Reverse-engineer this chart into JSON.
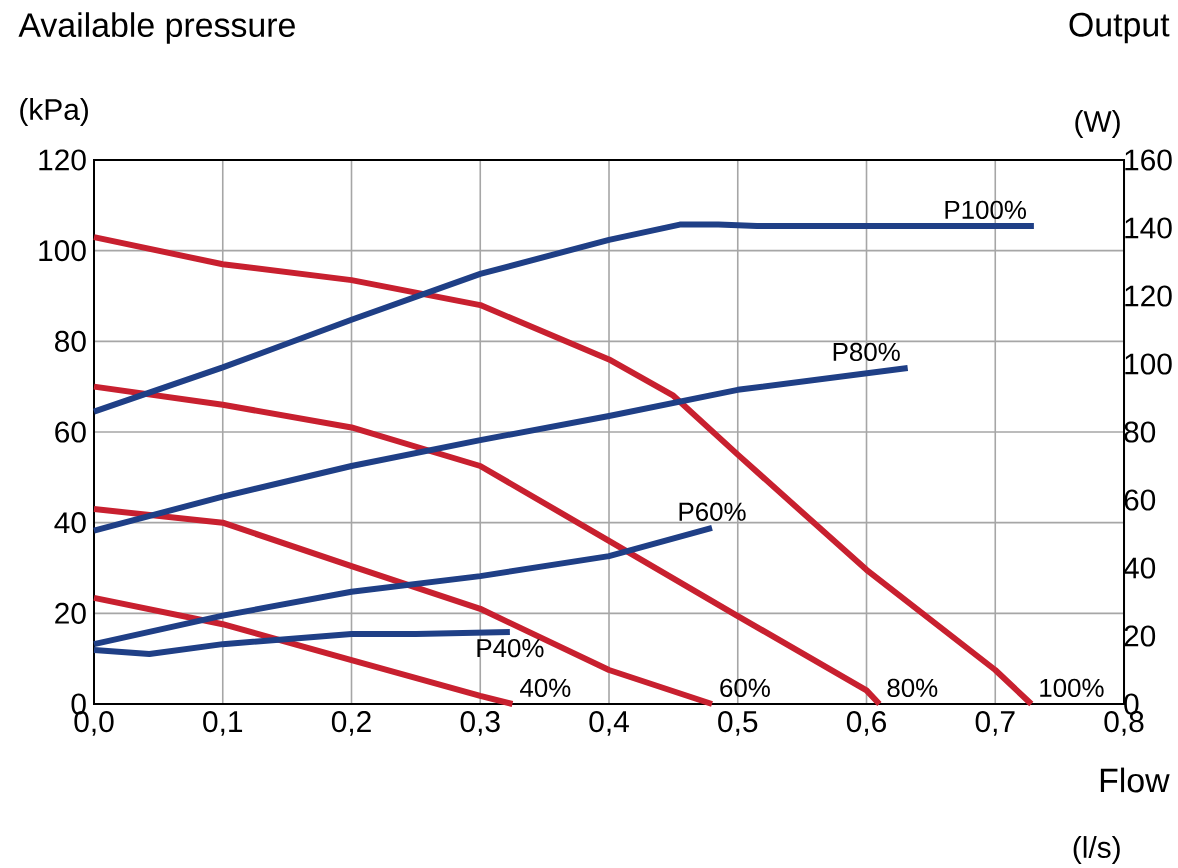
{
  "chart_data": {
    "type": "line",
    "xlabel": "(l/s)",
    "ylabel": "(kPa)",
    "y2label": "(W)",
    "annotations": [
      "Available pressure",
      "Output",
      "Flow"
    ],
    "xlim": [
      0,
      0.8
    ],
    "xticks": [
      {
        "value": 0,
        "label": "0,0"
      },
      {
        "value": 0.1,
        "label": "0,1"
      },
      {
        "value": 0.2,
        "label": "0,2"
      },
      {
        "value": 0.3,
        "label": "0,3"
      },
      {
        "value": 0.4,
        "label": "0,4"
      },
      {
        "value": 0.5,
        "label": "0,5"
      },
      {
        "value": 0.6,
        "label": "0,6"
      },
      {
        "value": 0.7,
        "label": "0,7"
      },
      {
        "value": 0.8,
        "label": "0,8"
      }
    ],
    "ylim": [
      0,
      120
    ],
    "yticks": [
      0,
      20,
      40,
      60,
      80,
      100,
      120
    ],
    "y2lim": [
      0,
      160
    ],
    "y2ticks": [
      0,
      20,
      40,
      60,
      80,
      100,
      120,
      140,
      160
    ],
    "grid": true,
    "series": [
      {
        "name": "100%",
        "color": "#c8202f",
        "x": [
          0,
          0.1,
          0.2,
          0.3,
          0.4,
          0.45,
          0.5,
          0.6,
          0.7,
          0.728
        ],
        "values": [
          103,
          97,
          93.5,
          88,
          76,
          68,
          55,
          29.6,
          7.5,
          0
        ]
      },
      {
        "name": "80%",
        "color": "#c8202f",
        "x": [
          0,
          0.1,
          0.2,
          0.3,
          0.4,
          0.5,
          0.6,
          0.61
        ],
        "values": [
          70,
          66,
          61,
          52.5,
          36,
          19.4,
          3,
          0
        ]
      },
      {
        "name": "60%",
        "color": "#c8202f",
        "x": [
          0,
          0.1,
          0.2,
          0.3,
          0.4,
          0.48
        ],
        "values": [
          43,
          40,
          30.4,
          21,
          7.5,
          0
        ]
      },
      {
        "name": "40%",
        "color": "#c8202f",
        "x": [
          0,
          0.1,
          0.2,
          0.3,
          0.325
        ],
        "values": [
          23.4,
          17.6,
          9.7,
          1.8,
          0
        ]
      },
      {
        "name": "P100%",
        "color": "#1f3f86",
        "axis": "y2",
        "x": [
          0,
          0.1,
          0.2,
          0.3,
          0.4,
          0.455,
          0.485,
          0.515,
          0.73
        ],
        "values": [
          86,
          99,
          113,
          126.5,
          136.5,
          141,
          141,
          140.6,
          140.6
        ]
      },
      {
        "name": "P80%",
        "color": "#1f3f86",
        "axis": "y2",
        "x": [
          0,
          0.1,
          0.2,
          0.3,
          0.4,
          0.5,
          0.632
        ],
        "values": [
          51,
          61,
          70,
          77.6,
          84.7,
          92.4,
          98.8
        ]
      },
      {
        "name": "P60%",
        "color": "#1f3f86",
        "axis": "y2",
        "x": [
          0,
          0.1,
          0.2,
          0.3,
          0.4,
          0.48
        ],
        "values": [
          17.6,
          26,
          33,
          37.6,
          43.5,
          51.8
        ]
      },
      {
        "name": "P40%",
        "color": "#1f3f86",
        "axis": "y2",
        "x": [
          0,
          0.043,
          0.1,
          0.2,
          0.25,
          0.323
        ],
        "values": [
          15.9,
          14.7,
          17.6,
          20.6,
          20.6,
          21.2
        ]
      }
    ]
  }
}
